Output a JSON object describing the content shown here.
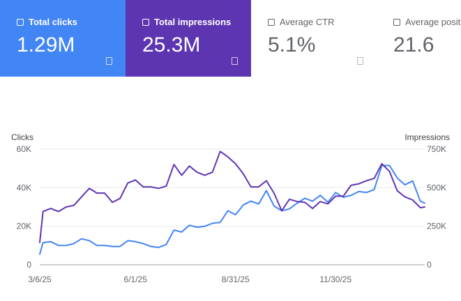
{
  "metrics": [
    {
      "label": "Total clicks",
      "value": "1.29M",
      "selected": true,
      "color": "#4285f4",
      "icon": "info-icon"
    },
    {
      "label": "Total impressions",
      "value": "25.3M",
      "selected": true,
      "color": "#5e35b1",
      "icon": "info-icon"
    },
    {
      "label": "Average CTR",
      "value": "5.1%",
      "selected": false,
      "color": "#ffffff",
      "icon": "info-icon"
    },
    {
      "label": "Average position",
      "value": "21.6",
      "selected": false,
      "color": "#ffffff",
      "icon": "info-icon"
    }
  ],
  "chart_data": {
    "type": "line",
    "left_axis": {
      "title": "Clicks",
      "ylim": [
        0,
        60000
      ],
      "ticks": [
        "0",
        "20K",
        "40K",
        "60K"
      ]
    },
    "right_axis": {
      "title": "Impressions",
      "ylim": [
        0,
        750000
      ],
      "ticks": [
        "0",
        "250K",
        "500K",
        "750K"
      ]
    },
    "x_ticks": [
      "3/6/25",
      "6/1/25",
      "8/31/25",
      "11/30/25"
    ],
    "x_range": [
      "2025-03-06",
      "2026-02-19"
    ],
    "grid": true,
    "series": [
      {
        "axis": "left",
        "color": "#4285f4",
        "x": [
          "2025-03-06",
          "2025-03-09",
          "2025-03-16",
          "2025-03-23",
          "2025-03-30",
          "2025-04-06",
          "2025-04-13",
          "2025-04-20",
          "2025-04-27",
          "2025-05-04",
          "2025-05-11",
          "2025-05-18",
          "2025-05-25",
          "2025-06-01",
          "2025-06-08",
          "2025-06-15",
          "2025-06-22",
          "2025-06-29",
          "2025-07-06",
          "2025-07-13",
          "2025-07-20",
          "2025-07-27",
          "2025-08-03",
          "2025-08-10",
          "2025-08-17",
          "2025-08-24",
          "2025-08-31",
          "2025-09-07",
          "2025-09-14",
          "2025-09-21",
          "2025-09-28",
          "2025-10-05",
          "2025-10-12",
          "2025-10-19",
          "2025-10-26",
          "2025-11-02",
          "2025-11-09",
          "2025-11-16",
          "2025-11-23",
          "2025-11-30",
          "2025-12-07",
          "2025-12-14",
          "2025-12-21",
          "2025-12-28",
          "2026-01-04",
          "2026-01-11",
          "2026-01-18",
          "2026-01-25",
          "2026-02-01",
          "2026-02-08",
          "2026-02-15",
          "2026-02-19"
        ],
        "values": [
          5500,
          11500,
          12000,
          10000,
          10000,
          11000,
          13500,
          12500,
          10000,
          10000,
          9500,
          9500,
          12500,
          12000,
          11000,
          9500,
          9000,
          10500,
          18000,
          17000,
          20500,
          19500,
          20000,
          21500,
          22000,
          28000,
          26000,
          31000,
          33000,
          31500,
          38500,
          30500,
          28000,
          29000,
          32000,
          34500,
          33000,
          36000,
          32500,
          37500,
          35000,
          36000,
          38000,
          37500,
          39000,
          51500,
          51500,
          45000,
          41500,
          43500,
          33000,
          32000
        ]
      },
      {
        "axis": "right",
        "color": "#5e35b1",
        "x": [
          "2025-03-06",
          "2025-03-09",
          "2025-03-16",
          "2025-03-23",
          "2025-03-30",
          "2025-04-06",
          "2025-04-13",
          "2025-04-20",
          "2025-04-27",
          "2025-05-04",
          "2025-05-11",
          "2025-05-18",
          "2025-05-25",
          "2025-06-01",
          "2025-06-08",
          "2025-06-15",
          "2025-06-22",
          "2025-06-29",
          "2025-07-06",
          "2025-07-13",
          "2025-07-20",
          "2025-07-27",
          "2025-08-03",
          "2025-08-10",
          "2025-08-17",
          "2025-08-24",
          "2025-08-31",
          "2025-09-07",
          "2025-09-14",
          "2025-09-21",
          "2025-09-28",
          "2025-10-05",
          "2025-10-12",
          "2025-10-19",
          "2025-10-26",
          "2025-11-02",
          "2025-11-09",
          "2025-11-16",
          "2025-11-23",
          "2025-11-30",
          "2025-12-07",
          "2025-12-14",
          "2025-12-21",
          "2025-12-28",
          "2026-01-04",
          "2026-01-11",
          "2026-01-18",
          "2026-01-25",
          "2026-02-01",
          "2026-02-08",
          "2026-02-15",
          "2026-02-19"
        ],
        "values": [
          145000,
          345000,
          365000,
          345000,
          375000,
          385000,
          440000,
          495000,
          465000,
          465000,
          405000,
          430000,
          530000,
          550000,
          505000,
          505000,
          495000,
          510000,
          650000,
          580000,
          640000,
          600000,
          580000,
          600000,
          735000,
          700000,
          655000,
          590000,
          505000,
          505000,
          545000,
          465000,
          350000,
          425000,
          410000,
          405000,
          365000,
          410000,
          395000,
          445000,
          445000,
          515000,
          525000,
          545000,
          560000,
          655000,
          605000,
          480000,
          440000,
          420000,
          370000,
          375000
        ]
      }
    ]
  }
}
